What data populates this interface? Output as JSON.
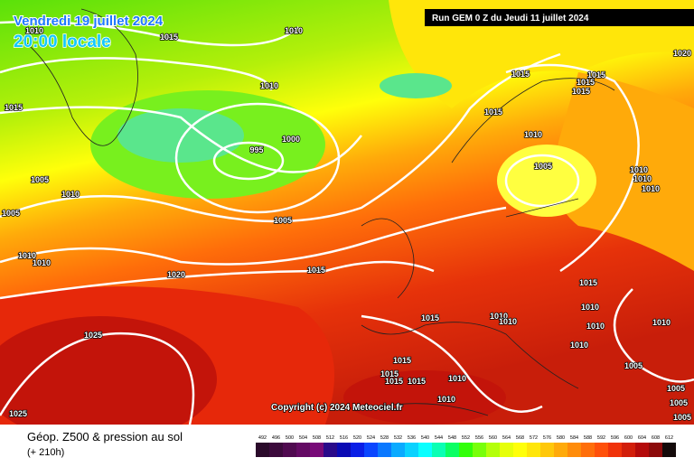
{
  "header": {
    "date": "Vendredi 19 juillet 2024",
    "time": "20:00 locale",
    "run": "Run GEM 0 Z du Jeudi 11 juillet 2024"
  },
  "copyright": "Copyright (c) 2024 Meteociel.fr",
  "isobar_labels": [
    "1010",
    "1015",
    "1010",
    "1015",
    "1010",
    "1000",
    "995",
    "1005",
    "1010",
    "1005",
    "1005",
    "1010",
    "1010",
    "1020",
    "1015",
    "1015",
    "1015",
    "1010",
    "1015",
    "1015",
    "1015",
    "1005",
    "1010",
    "1010",
    "1010",
    "1020",
    "1015",
    "1010",
    "1010",
    "1010",
    "1010",
    "1010",
    "1010",
    "1015",
    "1025",
    "1015",
    "1015",
    "1015",
    "1015",
    "1010",
    "1010",
    "1005",
    "1005",
    "1005",
    "1005",
    "1025"
  ],
  "legend": {
    "title": "Géop. Z500 & pression au sol",
    "lead": "(+ 210h)",
    "values": [
      492,
      496,
      500,
      504,
      508,
      512,
      516,
      520,
      524,
      528,
      532,
      536,
      540,
      544,
      548,
      552,
      556,
      560,
      564,
      568,
      572,
      576,
      580,
      584,
      588,
      592,
      596,
      600,
      604,
      608,
      612
    ],
    "colors": [
      "#2a0a2a",
      "#3c0a3c",
      "#500a50",
      "#640a64",
      "#780a78",
      "#2a0a8a",
      "#0a0ab4",
      "#0a1ee6",
      "#0a46ff",
      "#0a78ff",
      "#0aaaff",
      "#0ad2ff",
      "#0affff",
      "#0affb4",
      "#0aff64",
      "#32ff0a",
      "#78ff0a",
      "#b4ff0a",
      "#e6ff0a",
      "#ffff0a",
      "#ffe60a",
      "#ffc80a",
      "#ffaa0a",
      "#ff8c0a",
      "#ff6e0a",
      "#ff500a",
      "#f0320a",
      "#d21e0a",
      "#b40a0a",
      "#8c0a0a",
      "#140a0a"
    ]
  }
}
